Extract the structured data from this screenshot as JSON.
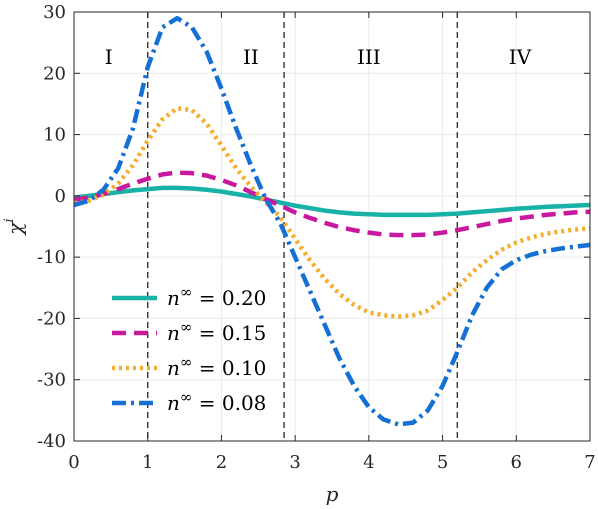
{
  "chart_data": {
    "type": "line",
    "title": "",
    "xlabel": "p",
    "ylabel": "χ",
    "ylabel_superscript": "i",
    "xlim": [
      0,
      7
    ],
    "ylim": [
      -40,
      30
    ],
    "xticks": [
      0,
      1,
      2,
      3,
      4,
      5,
      6,
      7
    ],
    "yticks": [
      -40,
      -30,
      -20,
      -10,
      0,
      10,
      20,
      30
    ],
    "grid": true,
    "legend_position": "bottom-left",
    "region_boundaries": [
      1.0,
      2.85,
      5.2
    ],
    "regions": [
      {
        "label": "I",
        "x": 0.47
      },
      {
        "label": "II",
        "x": 2.4
      },
      {
        "label": "III",
        "x": 4.0
      },
      {
        "label": "IV",
        "x": 6.05
      }
    ],
    "x": [
      0,
      0.2,
      0.4,
      0.6,
      0.8,
      1.0,
      1.2,
      1.4,
      1.6,
      1.8,
      2.0,
      2.2,
      2.4,
      2.6,
      2.8,
      3.0,
      3.2,
      3.4,
      3.6,
      3.8,
      4.0,
      4.2,
      4.4,
      4.6,
      4.8,
      5.0,
      5.2,
      5.4,
      5.6,
      5.8,
      6.0,
      6.2,
      6.4,
      6.6,
      6.8,
      7.0
    ],
    "series": [
      {
        "name": "n^∞ = 0.20",
        "legend_base": "n",
        "legend_sup": "∞",
        "legend_value": " = 0.20",
        "color": "#17b2a5",
        "dash": "solid",
        "values": [
          -0.3,
          0.0,
          0.3,
          0.6,
          0.9,
          1.1,
          1.3,
          1.3,
          1.2,
          1.0,
          0.7,
          0.3,
          -0.1,
          -0.6,
          -1.1,
          -1.6,
          -2.0,
          -2.4,
          -2.7,
          -2.9,
          -3.0,
          -3.1,
          -3.1,
          -3.1,
          -3.1,
          -3.0,
          -2.9,
          -2.7,
          -2.5,
          -2.3,
          -2.1,
          -1.95,
          -1.8,
          -1.7,
          -1.6,
          -1.5
        ]
      },
      {
        "name": "n^∞ = 0.15",
        "legend_base": "n",
        "legend_sup": "∞",
        "legend_value": " = 0.15",
        "color": "#c8199e",
        "dash": "dashed",
        "values": [
          -0.6,
          -0.3,
          0.3,
          1.1,
          2.0,
          2.8,
          3.5,
          3.8,
          3.7,
          3.3,
          2.6,
          1.7,
          0.6,
          -0.5,
          -1.6,
          -2.7,
          -3.6,
          -4.4,
          -5.1,
          -5.6,
          -6.0,
          -6.3,
          -6.4,
          -6.4,
          -6.3,
          -6.0,
          -5.6,
          -5.1,
          -4.6,
          -4.1,
          -3.7,
          -3.4,
          -3.1,
          -2.9,
          -2.7,
          -2.6
        ]
      },
      {
        "name": "n^∞ = 0.10",
        "legend_base": "n",
        "legend_sup": "∞",
        "legend_value": " = 0.10",
        "color": "#f7ac2b",
        "dash": "dotted",
        "values": [
          -1.2,
          -0.8,
          0.2,
          2.0,
          5.0,
          9.0,
          12.5,
          14.3,
          14.0,
          11.8,
          8.2,
          4.5,
          1.5,
          -1.0,
          -3.5,
          -7.0,
          -10.5,
          -13.5,
          -16.0,
          -17.8,
          -19.0,
          -19.5,
          -19.7,
          -19.5,
          -18.7,
          -17.0,
          -15.0,
          -12.5,
          -10.5,
          -8.8,
          -7.6,
          -6.8,
          -6.2,
          -5.8,
          -5.5,
          -5.3
        ]
      },
      {
        "name": "n^∞ = 0.08",
        "legend_base": "n",
        "legend_sup": "∞",
        "legend_value": " = 0.08",
        "color": "#1470d4",
        "dash": "dashdot",
        "values": [
          -1.5,
          -0.8,
          1.0,
          4.5,
          11.0,
          21.0,
          27.5,
          29.0,
          27.5,
          23.5,
          17.5,
          11.0,
          5.0,
          -0.5,
          -4.5,
          -10.0,
          -15.5,
          -21.0,
          -26.5,
          -31.0,
          -34.5,
          -36.5,
          -37.3,
          -37.0,
          -35.0,
          -31.0,
          -25.5,
          -19.5,
          -15.0,
          -12.0,
          -10.5,
          -9.6,
          -9.0,
          -8.6,
          -8.3,
          -8.0
        ]
      }
    ]
  }
}
